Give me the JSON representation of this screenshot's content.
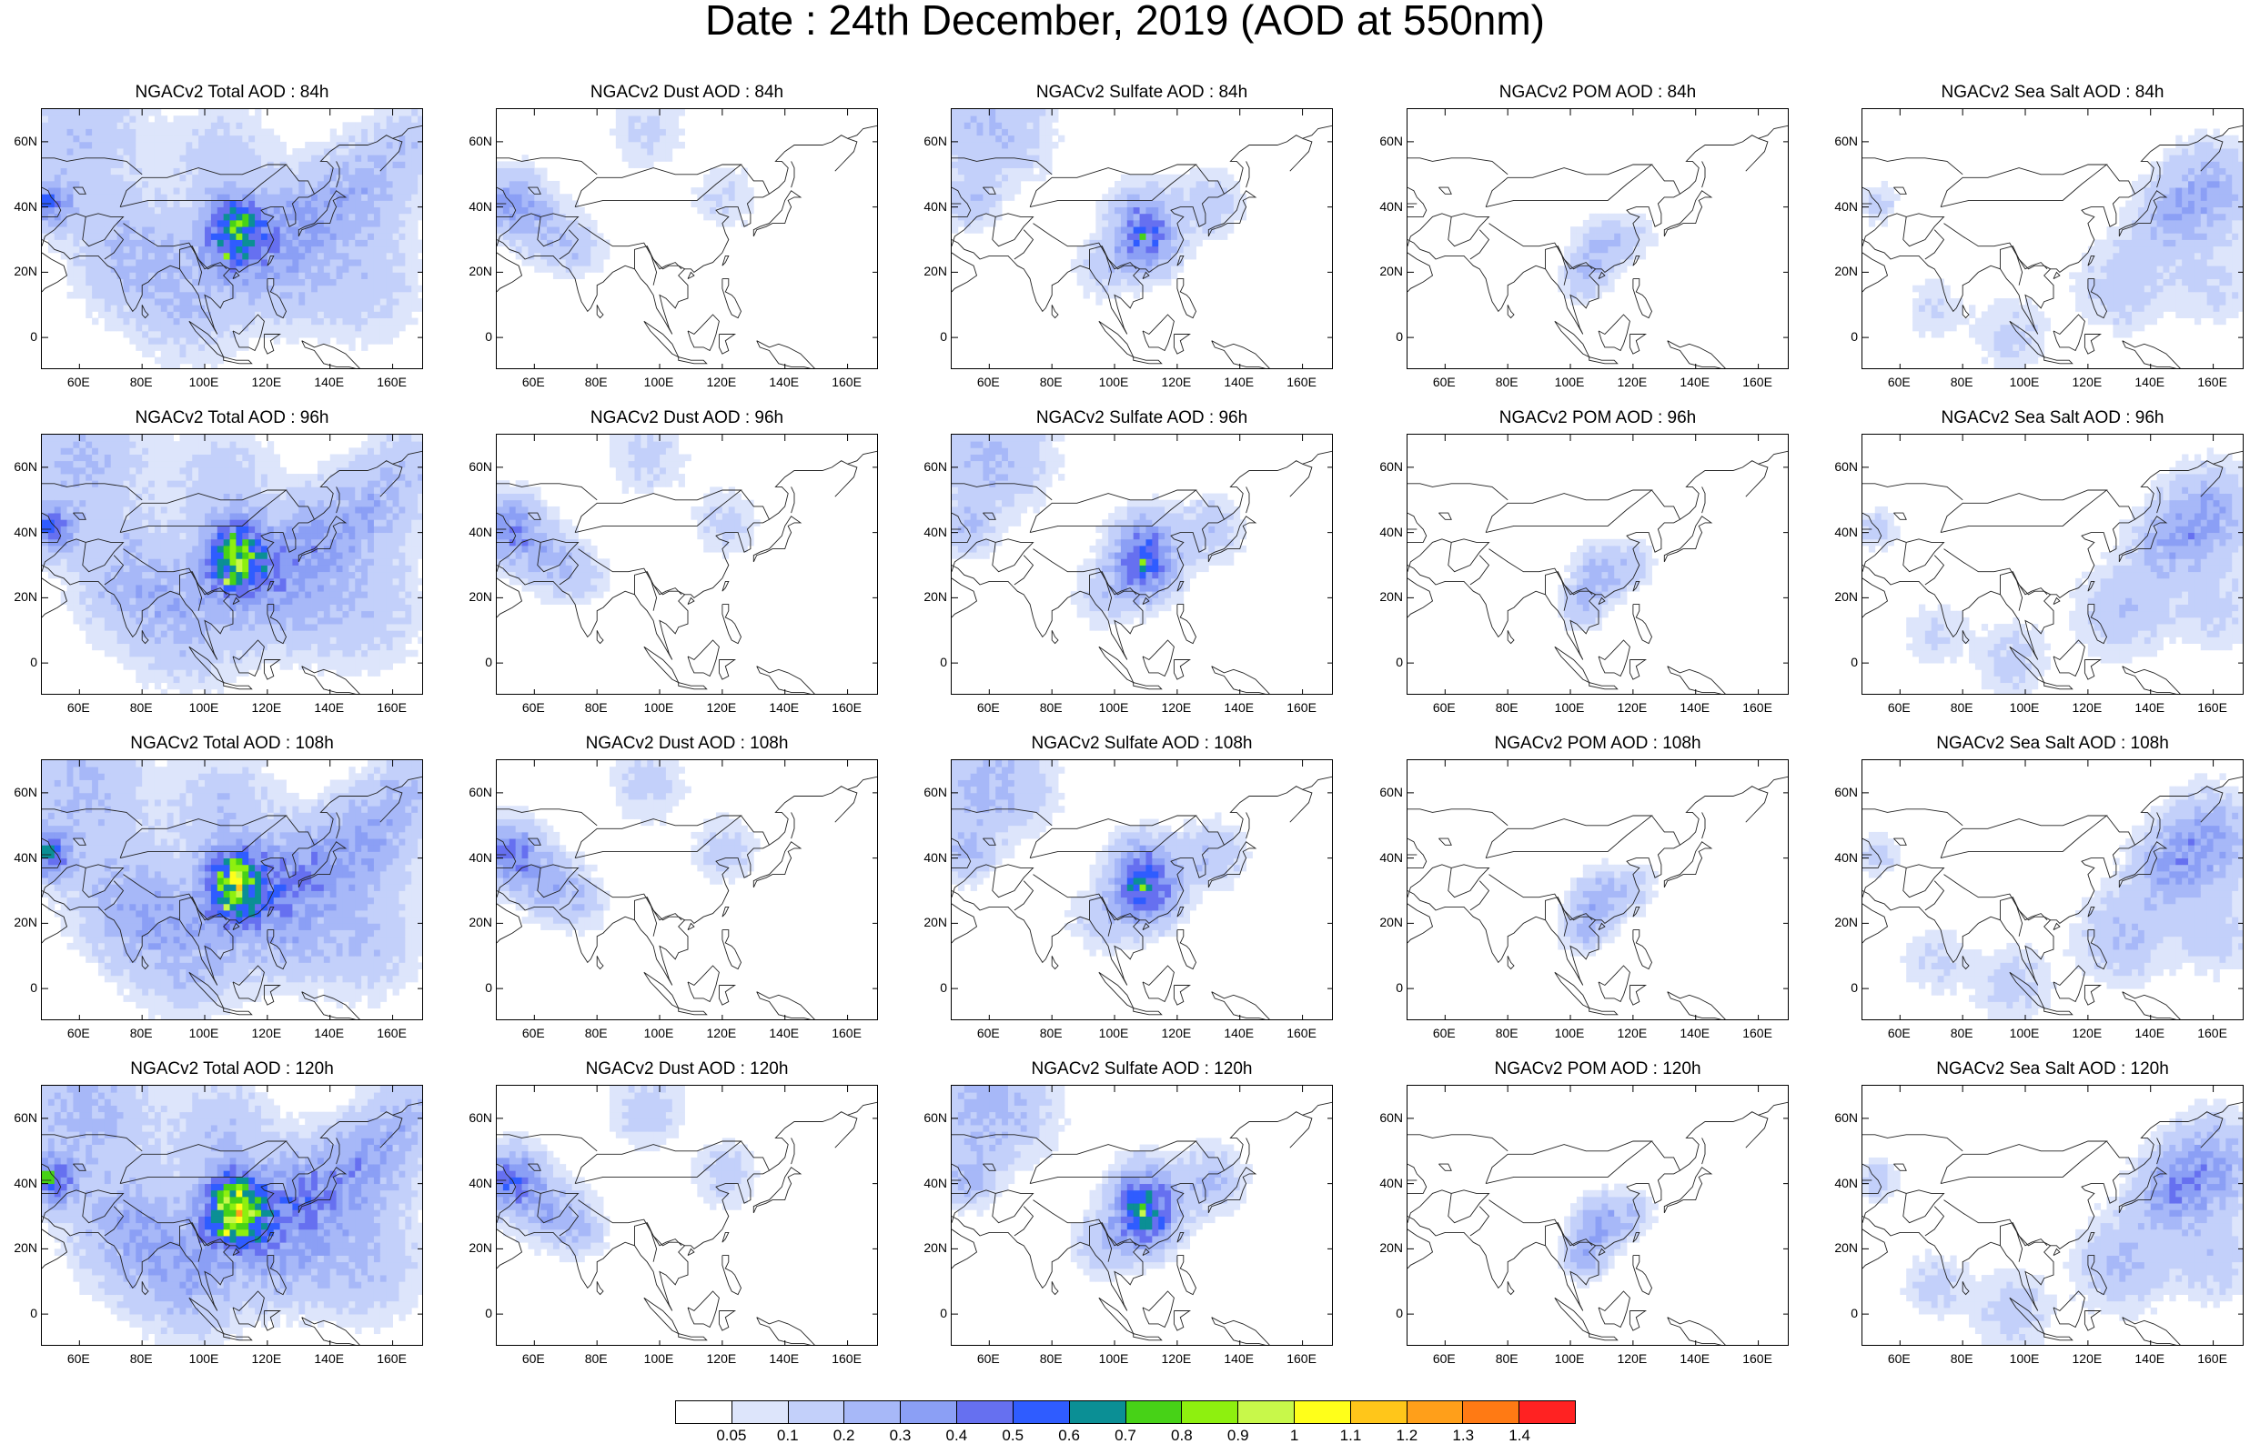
{
  "title": "Date : 24th December, 2019 (AOD at 550nm)",
  "lat_ticks": [
    "60N",
    "40N",
    "20N",
    "0"
  ],
  "lon_ticks": [
    "60E",
    "80E",
    "100E",
    "120E",
    "140E",
    "160E"
  ],
  "legend": {
    "labels": [
      "0.05",
      "0.1",
      "0.2",
      "0.3",
      "0.4",
      "0.5",
      "0.6",
      "0.7",
      "0.8",
      "0.9",
      "1",
      "1.1",
      "1.2",
      "1.3",
      "1.4"
    ],
    "colors": [
      "#ffffff",
      "#dde5fb",
      "#c3d0fa",
      "#a7b8f8",
      "#8b9ff5",
      "#6670f0",
      "#2f5cff",
      "#0b8f95",
      "#47d217",
      "#8ef00f",
      "#c8f84a",
      "#ffff1a",
      "#ffc61a",
      "#ff9f1a",
      "#ff7a14",
      "#ff2222"
    ]
  },
  "panels": [
    {
      "title": "NGACv2 Total AOD : 84h",
      "species": "total",
      "lead": 84
    },
    {
      "title": "NGACv2 Dust AOD : 84h",
      "species": "dust",
      "lead": 84
    },
    {
      "title": "NGACv2 Sulfate AOD : 84h",
      "species": "sulfate",
      "lead": 84
    },
    {
      "title": "NGACv2 POM AOD : 84h",
      "species": "pom",
      "lead": 84
    },
    {
      "title": "NGACv2 Sea Salt AOD : 84h",
      "species": "seasalt",
      "lead": 84
    },
    {
      "title": "NGACv2 Total AOD : 96h",
      "species": "total",
      "lead": 96
    },
    {
      "title": "NGACv2 Dust AOD : 96h",
      "species": "dust",
      "lead": 96
    },
    {
      "title": "NGACv2 Sulfate AOD : 96h",
      "species": "sulfate",
      "lead": 96
    },
    {
      "title": "NGACv2 POM AOD : 96h",
      "species": "pom",
      "lead": 96
    },
    {
      "title": "NGACv2 Sea Salt AOD : 96h",
      "species": "seasalt",
      "lead": 96
    },
    {
      "title": "NGACv2 Total AOD : 108h",
      "species": "total",
      "lead": 108
    },
    {
      "title": "NGACv2 Dust AOD : 108h",
      "species": "dust",
      "lead": 108
    },
    {
      "title": "NGACv2 Sulfate AOD : 108h",
      "species": "sulfate",
      "lead": 108
    },
    {
      "title": "NGACv2 POM AOD : 108h",
      "species": "pom",
      "lead": 108
    },
    {
      "title": "NGACv2 Sea Salt AOD : 108h",
      "species": "seasalt",
      "lead": 108
    },
    {
      "title": "NGACv2 Total AOD : 120h",
      "species": "total",
      "lead": 120
    },
    {
      "title": "NGACv2 Dust AOD : 120h",
      "species": "dust",
      "lead": 120
    },
    {
      "title": "NGACv2 Sulfate AOD : 120h",
      "species": "sulfate",
      "lead": 120
    },
    {
      "title": "NGACv2 POM AOD : 120h",
      "species": "pom",
      "lead": 120
    },
    {
      "title": "NGACv2 Sea Salt  AOD : 120h",
      "species": "seasalt",
      "lead": 120
    }
  ]
}
